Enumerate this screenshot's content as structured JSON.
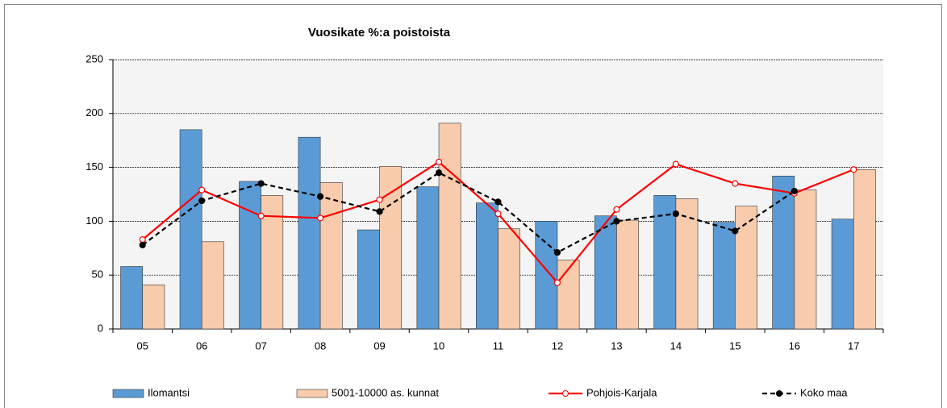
{
  "chart_data": {
    "type": "bar-line",
    "title": "Vuosikate %:a  poistoista",
    "categories": [
      "05",
      "06",
      "07",
      "08",
      "09",
      "10",
      "11",
      "12",
      "13",
      "14",
      "15",
      "16",
      "17"
    ],
    "series": [
      {
        "name": "Ilomantsi",
        "type": "bar",
        "color": "#5b9bd5",
        "values": [
          58,
          185,
          137,
          178,
          92,
          132,
          117,
          100,
          105,
          124,
          99,
          142,
          102
        ]
      },
      {
        "name": "5001-10000 as. kunnat",
        "type": "bar",
        "color": "#f8cbad",
        "values": [
          41,
          81,
          124,
          136,
          151,
          191,
          93,
          64,
          101,
          121,
          114,
          129,
          148
        ]
      },
      {
        "name": "Pohjois-Karjala",
        "type": "line",
        "color": "#ff0000",
        "values": [
          83,
          129,
          105,
          103,
          120,
          155,
          107,
          43,
          111,
          153,
          135,
          126,
          148
        ]
      },
      {
        "name": "Koko maa",
        "type": "line",
        "color": "#000000",
        "dashed": true,
        "values": [
          78,
          119,
          135,
          123,
          109,
          145,
          118,
          71,
          100,
          107,
          91,
          128,
          null
        ]
      }
    ],
    "ylim": [
      0,
      250
    ],
    "yticks": [
      0,
      50,
      100,
      150,
      200,
      250
    ],
    "grid": true,
    "legend": "bottom"
  }
}
